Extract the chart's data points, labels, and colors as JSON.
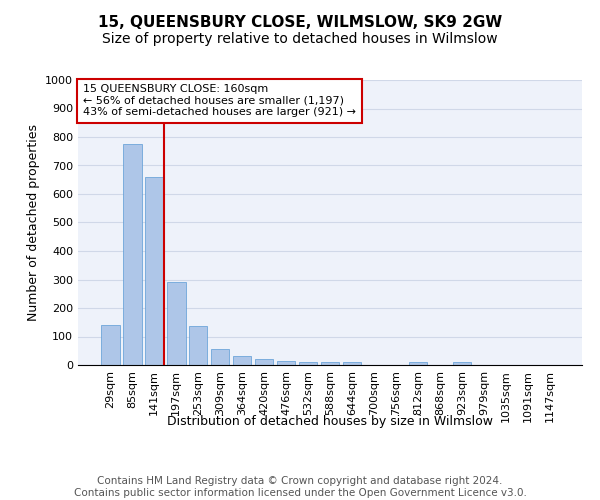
{
  "title": "15, QUEENSBURY CLOSE, WILMSLOW, SK9 2GW",
  "subtitle": "Size of property relative to detached houses in Wilmslow",
  "xlabel": "Distribution of detached houses by size in Wilmslow",
  "ylabel": "Number of detached properties",
  "categories": [
    "29sqm",
    "85sqm",
    "141sqm",
    "197sqm",
    "253sqm",
    "309sqm",
    "364sqm",
    "420sqm",
    "476sqm",
    "532sqm",
    "588sqm",
    "644sqm",
    "700sqm",
    "756sqm",
    "812sqm",
    "868sqm",
    "923sqm",
    "979sqm",
    "1035sqm",
    "1091sqm",
    "1147sqm"
  ],
  "values": [
    140,
    775,
    660,
    290,
    138,
    55,
    33,
    20,
    15,
    12,
    10,
    10,
    0,
    0,
    10,
    0,
    12,
    0,
    0,
    0,
    0
  ],
  "bar_color": "#aec6e8",
  "bar_edge_color": "#5b9bd5",
  "grid_color": "#d0d8e8",
  "bg_color": "#eef2fa",
  "vline_color": "#cc0000",
  "vline_x_index": 2,
  "annotation_lines": [
    "15 QUEENSBURY CLOSE: 160sqm",
    "← 56% of detached houses are smaller (1,197)",
    "43% of semi-detached houses are larger (921) →"
  ],
  "annotation_box_color": "#ffffff",
  "annotation_box_edge": "#cc0000",
  "ylim": [
    0,
    1000
  ],
  "yticks": [
    0,
    100,
    200,
    300,
    400,
    500,
    600,
    700,
    800,
    900,
    1000
  ],
  "footer_line1": "Contains HM Land Registry data © Crown copyright and database right 2024.",
  "footer_line2": "Contains public sector information licensed under the Open Government Licence v3.0.",
  "title_fontsize": 11,
  "subtitle_fontsize": 10,
  "axis_label_fontsize": 9,
  "tick_fontsize": 8,
  "footer_fontsize": 7.5,
  "annotation_fontsize": 8
}
